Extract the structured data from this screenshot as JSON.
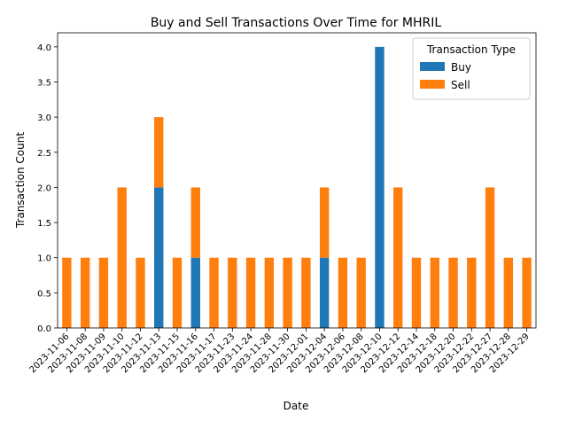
{
  "chart_data": {
    "type": "bar",
    "stacked": true,
    "title": "Buy and Sell Transactions Over Time for MHRIL",
    "xlabel": "Date",
    "ylabel": "Transaction Count",
    "ylim": [
      0,
      4.2
    ],
    "yticks": [
      0.0,
      0.5,
      1.0,
      1.5,
      2.0,
      2.5,
      3.0,
      3.5,
      4.0
    ],
    "ytick_labels": [
      "0.0",
      "0.5",
      "1.0",
      "1.5",
      "2.0",
      "2.5",
      "3.0",
      "3.5",
      "4.0"
    ],
    "grid": false,
    "legend": {
      "title": "Transaction Type",
      "placement": "top-right"
    },
    "categories": [
      "2023-11-06",
      "2023-11-08",
      "2023-11-09",
      "2023-11-10",
      "2023-11-12",
      "2023-11-13",
      "2023-11-15",
      "2023-11-16",
      "2023-11-17",
      "2023-11-23",
      "2023-11-24",
      "2023-11-28",
      "2023-11-30",
      "2023-12-01",
      "2023-12-04",
      "2023-12-06",
      "2023-12-08",
      "2023-12-10",
      "2023-12-12",
      "2023-12-14",
      "2023-12-18",
      "2023-12-20",
      "2023-12-22",
      "2023-12-27",
      "2023-12-28",
      "2023-12-29"
    ],
    "series": [
      {
        "name": "Buy",
        "color": "#1f77b4",
        "values": [
          0,
          0,
          0,
          0,
          0,
          2,
          0,
          1,
          0,
          0,
          0,
          0,
          0,
          0,
          1,
          0,
          0,
          4,
          0,
          0,
          0,
          0,
          0,
          0,
          0,
          0
        ]
      },
      {
        "name": "Sell",
        "color": "#ff7f0e",
        "values": [
          1,
          1,
          1,
          2,
          1,
          1,
          1,
          1,
          1,
          1,
          1,
          1,
          1,
          1,
          1,
          1,
          1,
          0,
          2,
          1,
          1,
          1,
          1,
          2,
          1,
          1
        ]
      }
    ]
  }
}
